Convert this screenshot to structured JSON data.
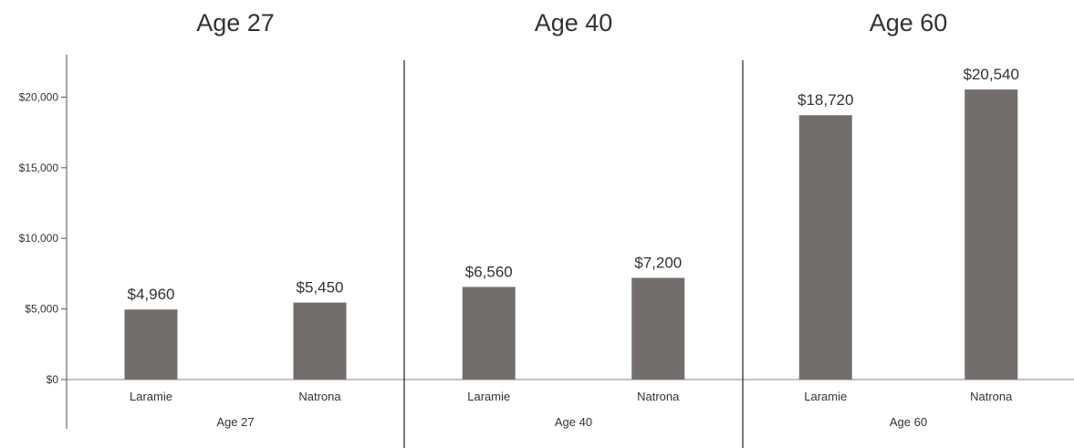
{
  "chart_data": {
    "type": "bar",
    "bar_color": "#736e6c",
    "ylim": [
      0,
      23000
    ],
    "yticks": [
      0,
      5000,
      10000,
      15000,
      20000
    ],
    "ytick_labels": [
      "$0",
      "$5,000",
      "$10,000",
      "$15,000",
      "$20,000"
    ],
    "grid": false,
    "panels": [
      {
        "title": "Age 27",
        "group_label": "Age 27",
        "categories": [
          "Laramie",
          "Natrona"
        ],
        "values": [
          4960,
          5450
        ],
        "labels": [
          "$4,960",
          "$5,450"
        ]
      },
      {
        "title": "Age 40",
        "group_label": "Age 40",
        "categories": [
          "Laramie",
          "Natrona"
        ],
        "values": [
          6560,
          7200
        ],
        "labels": [
          "$6,560",
          "$7,200"
        ]
      },
      {
        "title": "Age 60",
        "group_label": "Age 60",
        "categories": [
          "Laramie",
          "Natrona"
        ],
        "values": [
          18720,
          20540
        ],
        "labels": [
          "$18,720",
          "$20,540"
        ]
      }
    ]
  }
}
